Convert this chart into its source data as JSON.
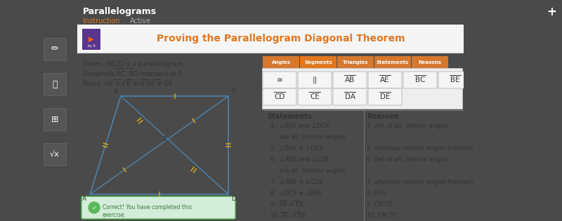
{
  "bg_color": "#4a4a4a",
  "sidebar_color": "#3d3d3d",
  "panel_bg": "#ffffff",
  "panel_header_bg": "#f0f0f0",
  "title": "Proving the Parallelogram Diagonal Theorem",
  "title_color": "#e07820",
  "header_title": "Parallelograms",
  "header_subtitle_1": "Instruction",
  "header_subtitle_2": "Active",
  "given_text_1": "Given: ABCD is a parallelogram.",
  "given_text_2": "Diagonals AC, BD intersect at E.",
  "prove_text": "Prove: AE ≅ CE and BE ≅ DE",
  "tab_labels": [
    "Angles",
    "Segments",
    "Triangles",
    "Statements",
    "Reasons"
  ],
  "tab_colors": [
    "#d4762a",
    "#e07820",
    "#d4762a",
    "#d4762a",
    "#d4762a"
  ],
  "button_row1": [
    "≅",
    "||",
    "AB",
    "AE",
    "BC",
    "BE"
  ],
  "button_row2": [
    "CD",
    "CE",
    "DA",
    "DE"
  ],
  "statements_header": "Statements",
  "reasons_header": "Reasons",
  "success_text_1": "Correct! You have completed this",
  "success_text_2": "exercise.",
  "para_color": "#4a7fa5",
  "tick_color": "#d4a020",
  "plus_bg": "#2980b9",
  "logo_bg": "#5a3590"
}
